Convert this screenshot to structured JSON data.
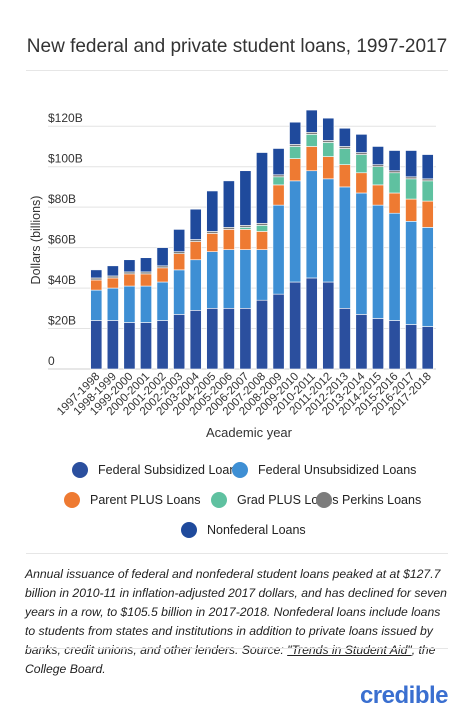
{
  "page": {
    "title": "New federal and private student loans, 1997-2017",
    "caption_main": "Annual issuance of federal and nonfederal student loans peaked at at $127.7 billion in 2010-11 in inflation-adjusted 2017 dollars, and has declined for seven years in a row, to $105.5 billion in 2017-2018. Nonfederal loans include loans to students from states and institutions in addition to private loans issued by banks, credit unions, and other lenders. Source: ",
    "caption_link": "\"Trends in Student Aid\"",
    "caption_tail": ", the College Board.",
    "brand": "credible"
  },
  "colors": {
    "federal_subsidized": "#2b4f9e",
    "federal_unsubsidized": "#3e8fd4",
    "parent_plus": "#ee7a32",
    "grad_plus": "#5fc1a0",
    "perkins": "#7c7c7c",
    "nonfederal": "#1f4a9c"
  },
  "chart_data": {
    "type": "bar",
    "stacked": true,
    "xlabel": "Academic year",
    "ylabel": "Dollars (billions)",
    "ylim": [
      0,
      130
    ],
    "yticks": [
      0,
      20,
      40,
      60,
      80,
      100,
      120
    ],
    "ytick_labels": [
      "0",
      "$20B",
      "$40B",
      "$60B",
      "$80B",
      "$100B",
      "$120B"
    ],
    "grid": true,
    "legend_position": "bottom",
    "categories": [
      "1997-1998",
      "1998-1999",
      "1999-2000",
      "2000-2001",
      "2001-2002",
      "2002-2003",
      "2003-2004",
      "2004-2005",
      "2005-2006",
      "2006-2007",
      "2007-2008",
      "2008-2009",
      "2009-2010",
      "2010-2011",
      "2011-2012",
      "2012-2013",
      "2013-2014",
      "2014-2015",
      "2015-2016",
      "2016-2017",
      "2017-2018"
    ],
    "series": [
      {
        "name": "Federal Subsidized Loans",
        "key": "federal_subsidized",
        "values": [
          24,
          24,
          23,
          23,
          24,
          27,
          29,
          30,
          30,
          30,
          34,
          37,
          43,
          45,
          43,
          30,
          27,
          25,
          24,
          22,
          21
        ]
      },
      {
        "name": "Federal Unsubsidized Loans",
        "key": "federal_unsubsidized",
        "values": [
          15,
          16,
          18,
          18,
          19,
          22,
          25,
          28,
          29,
          29,
          25,
          44,
          50,
          53,
          51,
          60,
          60,
          56,
          53,
          51,
          49
        ]
      },
      {
        "name": "Parent PLUS Loans",
        "key": "parent_plus",
        "values": [
          5,
          5,
          6,
          6,
          7,
          8,
          9,
          9,
          10,
          10,
          9,
          10,
          11,
          12,
          11,
          11,
          10,
          10,
          10,
          11,
          13
        ]
      },
      {
        "name": "Grad PLUS Loans",
        "key": "grad_plus",
        "values": [
          0,
          0,
          0,
          0,
          0,
          0,
          0,
          0,
          0,
          1,
          3,
          4,
          6,
          6,
          7,
          8,
          9,
          9,
          10,
          10,
          10
        ]
      },
      {
        "name": "Perkins Loans",
        "key": "perkins",
        "values": [
          1,
          1,
          1,
          1,
          1,
          1,
          1,
          1,
          1,
          1,
          1,
          1,
          1,
          1,
          1,
          1,
          1,
          1,
          1,
          1,
          1
        ]
      },
      {
        "name": "Nonfederal Loans",
        "key": "nonfederal",
        "values": [
          4,
          5,
          6,
          7,
          9,
          11,
          15,
          20,
          23,
          27,
          35,
          13,
          11,
          11,
          11,
          9,
          9,
          9,
          10,
          13,
          12
        ]
      }
    ]
  }
}
